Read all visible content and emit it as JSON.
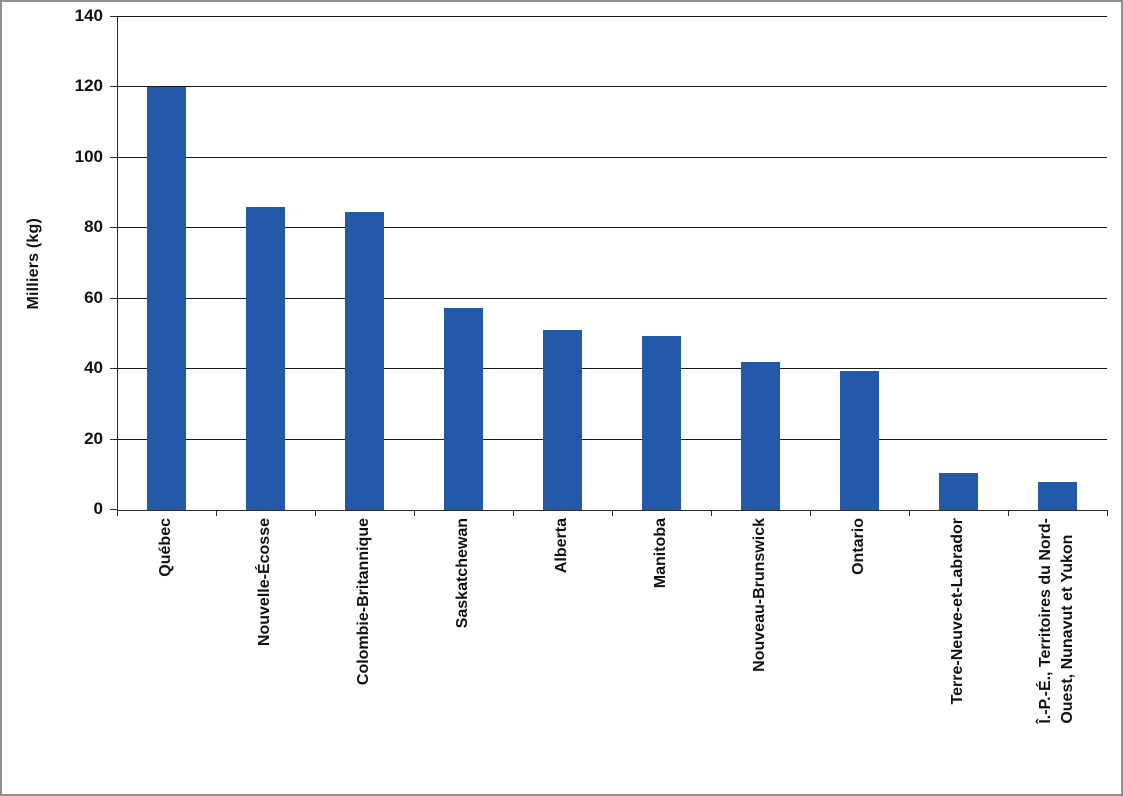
{
  "chart_data": {
    "type": "bar",
    "title": "",
    "xlabel": "",
    "ylabel": "Milliers (kg)",
    "ylim": [
      0,
      140
    ],
    "yticks": [
      0,
      20,
      40,
      60,
      80,
      100,
      120,
      140
    ],
    "grid": "horizontal-black-lines",
    "legend": "none",
    "bar_color": "#2458A8",
    "axis_color": "#2b2b2b",
    "gridline_color": "#1a1a1a",
    "frame_border_color": "#8f8f8f",
    "categories": [
      "Québec",
      "Nouvelle-Écosse",
      "Colombie-Britannique",
      "Saskatchewan",
      "Alberta",
      "Manitoba",
      "Nouveau-Brunswick",
      "Ontario",
      "Terre-Neuve-et-Labrador",
      "Î.-P.-É., Territoires du Nord-\nOuest, Nunavut et Yukon"
    ],
    "values": [
      120,
      86,
      84.5,
      57.5,
      51,
      49.5,
      42,
      39.5,
      10.5,
      8
    ]
  }
}
